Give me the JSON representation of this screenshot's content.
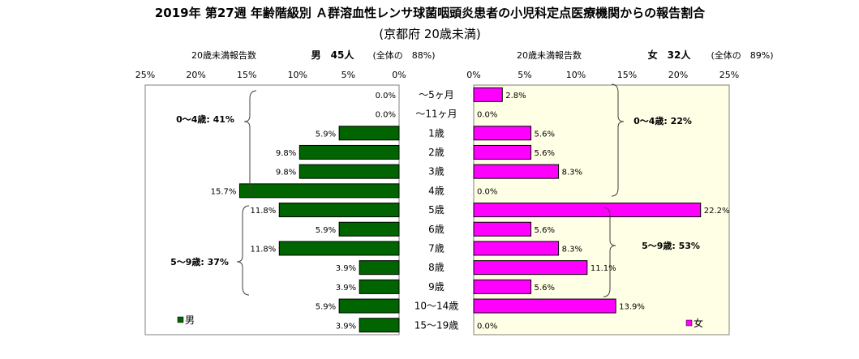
{
  "title": "2019年 第27週 年齢階級別 Ａ群溶血性レンサ球菌咽頭炎患者の小児科定点医療機関からの報告割合",
  "subtitle": "(京都府 20歳未満)",
  "left_header": {
    "label": "20歳未満報告数",
    "sex_count": "男　45人",
    "share": "(全体の　88%)"
  },
  "right_header": {
    "label": "20歳未満報告数",
    "sex_count": "女　32人",
    "share": "(全体の　89%)"
  },
  "left_groups": [
    {
      "label": "0～4歳: 41%"
    },
    {
      "label": "5～9歳: 37%"
    }
  ],
  "right_groups": [
    {
      "label": "0～4歳: 22%"
    },
    {
      "label": "5～9歳: 53%"
    }
  ],
  "legend": {
    "male": "男",
    "female": "女"
  },
  "colors": {
    "male": "#006400",
    "female": "#ff00ff",
    "right_panel_bg": "#ffffe6"
  },
  "chart_data": {
    "type": "bar",
    "orientation": "horizontal",
    "layout": "population-pyramid",
    "categories": [
      "～5ヶ月",
      "～11ヶ月",
      "1歳",
      "2歳",
      "3歳",
      "4歳",
      "5歳",
      "6歳",
      "7歳",
      "8歳",
      "9歳",
      "10～14歳",
      "15～19歳"
    ],
    "series": [
      {
        "name": "男",
        "values": [
          0.0,
          0.0,
          5.9,
          9.8,
          9.8,
          15.7,
          11.8,
          5.9,
          11.8,
          3.9,
          3.9,
          5.9,
          3.9
        ],
        "labels": [
          "0.0%",
          "0.0%",
          "5.9%",
          "9.8%",
          "9.8%",
          "15.7%",
          "11.8%",
          "5.9%",
          "11.8%",
          "3.9%",
          "3.9%",
          "5.9%",
          "3.9%"
        ]
      },
      {
        "name": "女",
        "values": [
          2.8,
          0.0,
          5.6,
          5.6,
          8.3,
          0.0,
          22.2,
          5.6,
          8.3,
          11.1,
          5.6,
          13.9,
          0.0
        ],
        "labels": [
          "2.8%",
          "0.0%",
          "5.6%",
          "5.6%",
          "8.3%",
          "0.0%",
          "22.2%",
          "5.6%",
          "8.3%",
          "11.1%",
          "5.6%",
          "13.9%",
          "0.0%"
        ]
      }
    ],
    "xlim": [
      0,
      25
    ],
    "left_ticks": [
      "25%",
      "20%",
      "15%",
      "10%",
      "5%",
      "0%"
    ],
    "right_ticks": [
      "0%",
      "5%",
      "10%",
      "15%",
      "20%",
      "25%"
    ],
    "legend_position": "bottom"
  }
}
